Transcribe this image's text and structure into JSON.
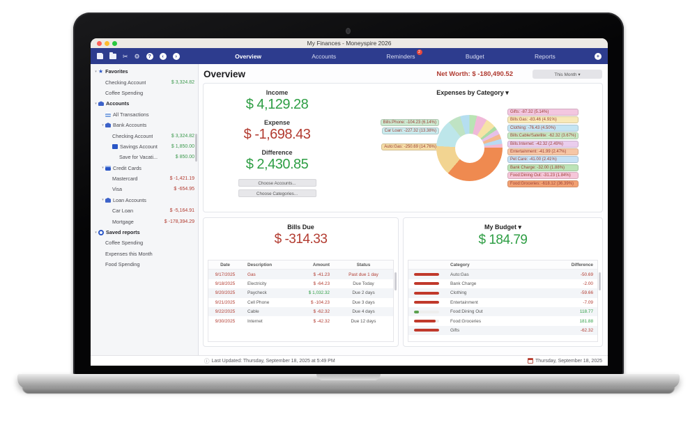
{
  "window": {
    "title": "My Finances - Moneyspire 2026"
  },
  "toolbar": {
    "icons": [
      "save",
      "folder",
      "cut",
      "settings",
      "help",
      "back",
      "forward"
    ],
    "add_icon": "plus"
  },
  "nav": {
    "items": [
      {
        "label": "Overview",
        "active": true
      },
      {
        "label": "Accounts"
      },
      {
        "label": "Reminders",
        "badge": "2"
      },
      {
        "label": "Budget"
      },
      {
        "label": "Reports"
      }
    ]
  },
  "sidebar": {
    "rows": [
      {
        "indent": 0,
        "icon": "star",
        "label": "Favorites",
        "hdr": true,
        "arrow": true
      },
      {
        "indent": 1,
        "label": "Checking Account",
        "value": "$ 3,324.82",
        "vcolor": "pos"
      },
      {
        "indent": 1,
        "label": "Coffee Spending"
      },
      {
        "indent": 0,
        "icon": "bank",
        "label": "Accounts",
        "hdr": true,
        "arrow": true
      },
      {
        "indent": 1,
        "icon": "list",
        "label": "All Transactions"
      },
      {
        "indent": 1,
        "icon": "bank",
        "label": "Bank Accounts",
        "arrow": true
      },
      {
        "indent": 2,
        "label": "Checking Account",
        "value": "$ 3,324.82",
        "vcolor": "pos"
      },
      {
        "indent": 2,
        "icon": "folder",
        "label": "Savings Account",
        "value": "$ 1,850.00",
        "vcolor": "pos"
      },
      {
        "indent": 3,
        "label": "Save for Vacati...",
        "value": "$ 850.00",
        "vcolor": "pos"
      },
      {
        "indent": 1,
        "icon": "card",
        "label": "Credit Cards",
        "arrow": true
      },
      {
        "indent": 2,
        "label": "Mastercard",
        "value": "$ -1,421.19",
        "vcolor": "neg"
      },
      {
        "indent": 2,
        "label": "Visa",
        "value": "$ -654.95",
        "vcolor": "neg"
      },
      {
        "indent": 1,
        "icon": "loan",
        "label": "Loan Accounts",
        "arrow": true
      },
      {
        "indent": 2,
        "label": "Car Loan",
        "value": "$ -5,164.91",
        "vcolor": "neg"
      },
      {
        "indent": 2,
        "label": "Mortgage",
        "value": "$ -178,394.29",
        "vcolor": "neg"
      },
      {
        "indent": 0,
        "icon": "reports",
        "label": "Saved reports",
        "hdr": true,
        "arrow": true
      },
      {
        "indent": 1,
        "label": "Coffee Spending"
      },
      {
        "indent": 1,
        "label": "Expenses this Month"
      },
      {
        "indent": 1,
        "label": "Food Spending"
      }
    ]
  },
  "overview": {
    "title": "Overview",
    "net_worth": "Net Worth: $ -180,490.52",
    "period_button": "This Month ▾"
  },
  "summary": {
    "income_label": "Income",
    "income": "$ 4,129.28",
    "expense_label": "Expense",
    "expense": "$ -1,698.43",
    "difference_label": "Difference",
    "difference": "$ 2,430.85",
    "choose_accounts": "Choose Accounts...",
    "choose_categories": "Choose Categories..."
  },
  "chart_data": {
    "type": "pie",
    "title": "Expenses by Category ▾",
    "total_expense": -1698.43,
    "slices": [
      {
        "label": "Bills:Phone",
        "amount": "-104.23",
        "pct": 6.14,
        "color": "#bfe3c4"
      },
      {
        "label": "Car Loan",
        "amount": "-227.32",
        "pct": 13.38,
        "color": "#bde6ea"
      },
      {
        "label": "Auto:Gas",
        "amount": "-250.69",
        "pct": 14.76,
        "color": "#f2d491"
      },
      {
        "label": "Gifts",
        "amount": "-87.32",
        "pct": 5.14,
        "color": "#f0b9d8"
      },
      {
        "label": "Bills:Gas",
        "amount": "-83.46",
        "pct": 4.91,
        "color": "#f6e3a6"
      },
      {
        "label": "Clothing",
        "amount": "-76.43",
        "pct": 4.5,
        "color": "#b5def0"
      },
      {
        "label": "Bills:Cable/Satellite",
        "amount": "-62.32",
        "pct": 3.67,
        "color": "#b9e4b4"
      },
      {
        "label": "Bills:Internet",
        "amount": "-42.32",
        "pct": 2.49,
        "color": "#e5c0e8"
      },
      {
        "label": "Entertainment",
        "amount": "-41.99",
        "pct": 2.47,
        "color": "#f4b88e"
      },
      {
        "label": "Pet Care",
        "amount": "-41.00",
        "pct": 2.41,
        "color": "#b8d9f2"
      },
      {
        "label": "Bank Charge",
        "amount": "-32.00",
        "pct": 1.88,
        "color": "#abdca5"
      },
      {
        "label": "Food:Dining Out",
        "amount": "-31.23",
        "pct": 1.84,
        "color": "#f4b8cf"
      },
      {
        "label": "Food:Groceries",
        "amount": "-618.12",
        "pct": 36.39,
        "color": "#ef8a50"
      }
    ],
    "left_legend_indices": [
      0,
      1,
      2
    ],
    "right_legend_indices": [
      3,
      4,
      5,
      6,
      7,
      8,
      9,
      10,
      11,
      12
    ],
    "draw_order": [
      6,
      3,
      4,
      10,
      7,
      8,
      9,
      11,
      12,
      2,
      1,
      0,
      5
    ]
  },
  "bills": {
    "title": "Bills Due",
    "total": "$ -314.33",
    "headers": [
      "Date",
      "Description",
      "Amount",
      "Status"
    ],
    "rows": [
      {
        "date": "9/17/2025",
        "description": "Gas",
        "amount": "$ -41.23",
        "amount_color": "red",
        "status": "Past due 1 day",
        "status_color": "red",
        "desc_color": "red"
      },
      {
        "date": "9/18/2025",
        "description": "Electricity",
        "amount": "$ -64.23",
        "amount_color": "red",
        "status": "Due Today",
        "status_color": "dark",
        "desc_color": "dark"
      },
      {
        "date": "9/20/2025",
        "description": "Paycheck",
        "amount": "$ 1,032.32",
        "amount_color": "green",
        "status": "Due 2 days",
        "status_color": "dark",
        "desc_color": "dark"
      },
      {
        "date": "9/21/2025",
        "description": "Cell Phone",
        "amount": "$ -104.23",
        "amount_color": "red",
        "status": "Due 3 days",
        "status_color": "dark",
        "desc_color": "dark"
      },
      {
        "date": "9/22/2025",
        "description": "Cable",
        "amount": "$ -62.32",
        "amount_color": "red",
        "status": "Due 4 days",
        "status_color": "dark",
        "desc_color": "dark"
      },
      {
        "date": "9/30/2025",
        "description": "Internet",
        "amount": "$ -42.32",
        "amount_color": "red",
        "status": "Due 12 days",
        "status_color": "dark",
        "desc_color": "dark"
      }
    ]
  },
  "budget": {
    "title": "My Budget ▾",
    "total": "$ 184.79",
    "headers": [
      "Category",
      "Difference"
    ],
    "rows": [
      {
        "category": "Auto:Gas",
        "difference": "-50.69",
        "diff_color": "red",
        "bar_pct": 100,
        "bar_color": "#c0392b"
      },
      {
        "category": "Bank Charge",
        "difference": "-2.00",
        "diff_color": "red",
        "bar_pct": 100,
        "bar_color": "#c0392b"
      },
      {
        "category": "Clothing",
        "difference": "-59.66",
        "diff_color": "red",
        "bar_pct": 100,
        "bar_color": "#c0392b"
      },
      {
        "category": "Entertainment",
        "difference": "-7.09",
        "diff_color": "red",
        "bar_pct": 100,
        "bar_color": "#c0392b"
      },
      {
        "category": "Food:Dining Out",
        "difference": "118.77",
        "diff_color": "green",
        "bar_pct": 20,
        "bar_color": "#5aa04e"
      },
      {
        "category": "Food:Groceries",
        "difference": "181.88",
        "diff_color": "green",
        "bar_pct": 85,
        "bar_color": "#c0392b"
      },
      {
        "category": "Gifts",
        "difference": "-62.32",
        "diff_color": "red",
        "bar_pct": 100,
        "bar_color": "#c0392b"
      }
    ]
  },
  "statusbar": {
    "last_updated": "Last Updated: Thursday, September 18, 2025 at 5:49 PM",
    "date": "Thursday, September 18, 2025"
  }
}
